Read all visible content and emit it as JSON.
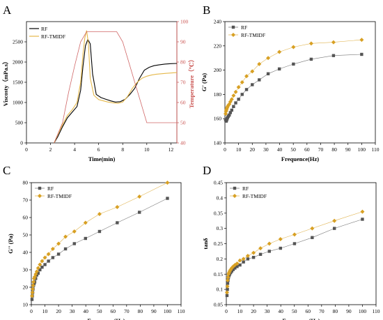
{
  "figure": {
    "panels": [
      "A",
      "B",
      "C",
      "D"
    ]
  },
  "chart_data": [
    {
      "panel": "A",
      "type": "line",
      "xlabel": "Time(min)",
      "ylabel": "Viscosty（mPa.s）",
      "y2label": "Temperature（℃）",
      "xlim": [
        0,
        12.5
      ],
      "ylim": [
        0,
        3000
      ],
      "y2lim": [
        40,
        100
      ],
      "x_ticks": [
        0,
        2,
        4,
        6,
        8,
        10,
        12
      ],
      "y_ticks": [
        0,
        500,
        1000,
        1500,
        2000,
        2500
      ],
      "y2_ticks": [
        40,
        50,
        60,
        70,
        80,
        90,
        100
      ],
      "legend": "top-left",
      "series": [
        {
          "name": "RF",
          "color": "#000000",
          "x": [
            2.3,
            2.6,
            3.0,
            3.4,
            3.8,
            4.2,
            4.5,
            4.7,
            4.9,
            5.1,
            5.3,
            5.5,
            5.8,
            6.2,
            6.6,
            7.0,
            7.4,
            7.8,
            8.2,
            8.6,
            9.0,
            9.4,
            9.8,
            10.2,
            10.6,
            11.0,
            11.5,
            12.0,
            12.5
          ],
          "y": [
            0,
            150,
            400,
            620,
            760,
            900,
            1300,
            1900,
            2400,
            2560,
            2450,
            1700,
            1200,
            1120,
            1080,
            1040,
            1010,
            1020,
            1080,
            1200,
            1350,
            1600,
            1800,
            1870,
            1910,
            1930,
            1950,
            1960,
            1965
          ]
        },
        {
          "name": "RF-TMIDF",
          "color": "#e5b84a",
          "x": [
            2.3,
            2.6,
            3.0,
            3.4,
            3.8,
            4.2,
            4.5,
            4.7,
            4.85,
            5.0,
            5.15,
            5.3,
            5.6,
            6.0,
            6.4,
            6.8,
            7.2,
            7.6,
            8.0,
            8.4,
            8.8,
            9.2,
            9.6,
            10.0,
            10.4,
            10.8,
            11.2,
            11.6,
            12.0,
            12.5
          ],
          "y": [
            0,
            200,
            450,
            680,
            820,
            1000,
            1500,
            2200,
            2600,
            2780,
            2450,
            1600,
            1180,
            1070,
            1040,
            1010,
            990,
            980,
            1010,
            1150,
            1350,
            1500,
            1600,
            1650,
            1680,
            1700,
            1710,
            1720,
            1730,
            1740
          ]
        },
        {
          "name": "Temperature",
          "color": "#d06666",
          "axis": "y2",
          "x": [
            2.3,
            3.0,
            3.5,
            4.0,
            4.5,
            5.0,
            5.5,
            6.0,
            6.5,
            7.0,
            7.5,
            8.0,
            8.5,
            9.0,
            9.5,
            10.0,
            10.5,
            11.0,
            11.5,
            12.0,
            12.5
          ],
          "y": [
            40,
            50,
            65,
            78,
            90,
            95,
            95,
            95,
            95,
            95,
            95,
            90,
            80,
            70,
            60,
            50,
            50,
            50,
            50,
            50,
            50
          ]
        }
      ]
    },
    {
      "panel": "B",
      "type": "line",
      "xlabel": "Frequence(Hz)",
      "ylabel": "G' (Pa)",
      "xlim": [
        0,
        110
      ],
      "ylim": [
        140,
        240
      ],
      "x_ticks": [
        0,
        10,
        20,
        30,
        40,
        50,
        60,
        70,
        80,
        90,
        100,
        110
      ],
      "y_ticks": [
        140,
        160,
        180,
        200,
        220,
        240
      ],
      "legend": "top-left",
      "x": [
        0.5,
        0.8,
        1.0,
        1.3,
        1.6,
        2.0,
        2.5,
        3.2,
        4.0,
        5.0,
        6.3,
        7.9,
        10,
        12.6,
        15.8,
        20,
        25.1,
        31.6,
        39.8,
        50.1,
        63.1,
        79.4,
        100
      ],
      "series": [
        {
          "name": "RF",
          "color": "#555555",
          "marker": "square",
          "values": [
            159,
            158,
            158,
            159,
            160,
            161,
            162,
            163,
            165,
            167,
            170,
            173,
            176,
            180,
            184,
            188,
            192,
            197,
            201,
            205,
            209,
            212,
            213
          ]
        },
        {
          "name": "RF-TMIDF",
          "color": "#d8a023",
          "marker": "diamond",
          "values": [
            164,
            166,
            167,
            168,
            169,
            170,
            171,
            172,
            174,
            176,
            179,
            182,
            186,
            190,
            195,
            199,
            205,
            210,
            215,
            219,
            222,
            223,
            225
          ]
        }
      ]
    },
    {
      "panel": "C",
      "type": "line",
      "xlabel": "Frequence(Hz)",
      "ylabel": "G'' (Pa)",
      "xlim": [
        0,
        110
      ],
      "ylim": [
        10,
        80
      ],
      "x_ticks": [
        0,
        10,
        20,
        30,
        40,
        50,
        60,
        70,
        80,
        90,
        100,
        110
      ],
      "y_ticks": [
        10,
        20,
        30,
        40,
        50,
        60,
        70,
        80
      ],
      "legend": "top-left",
      "x": [
        0.5,
        0.8,
        1.0,
        1.3,
        1.6,
        2.0,
        2.5,
        3.2,
        4.0,
        5.0,
        6.3,
        7.9,
        10,
        12.6,
        15.8,
        20,
        25.1,
        31.6,
        39.8,
        50.1,
        63.1,
        79.4,
        100
      ],
      "series": [
        {
          "name": "RF",
          "color": "#555555",
          "marker": "square",
          "values": [
            13,
            15,
            17,
            19,
            21,
            22,
            23,
            25,
            27,
            28,
            30,
            31.5,
            33,
            35,
            37,
            39,
            42,
            45,
            48,
            52,
            57,
            63,
            71
          ]
        },
        {
          "name": "RF-TMIDF",
          "color": "#d8a023",
          "marker": "diamond",
          "values": [
            15,
            17,
            19,
            21,
            23,
            25,
            26,
            27.5,
            29,
            31,
            33,
            35,
            37,
            39,
            42,
            45,
            49,
            52,
            57,
            62,
            66,
            72,
            80
          ]
        }
      ]
    },
    {
      "panel": "D",
      "type": "line",
      "xlabel": "Frequence(Hz)",
      "ylabel": "tanδ",
      "xlim": [
        0,
        110
      ],
      "ylim": [
        0.05,
        0.45
      ],
      "x_ticks": [
        0,
        10,
        20,
        30,
        40,
        50,
        60,
        70,
        80,
        90,
        100,
        110
      ],
      "y_ticks": [
        0.05,
        0.1,
        0.15,
        0.2,
        0.25,
        0.3,
        0.35,
        0.4,
        0.45
      ],
      "legend": "top-left",
      "x": [
        0.5,
        0.8,
        1.0,
        1.3,
        1.6,
        2.0,
        2.5,
        3.2,
        4.0,
        5.0,
        6.3,
        7.9,
        10,
        12.6,
        15.8,
        20,
        25.1,
        31.6,
        39.8,
        50.1,
        63.1,
        79.4,
        100
      ],
      "series": [
        {
          "name": "RF",
          "color": "#555555",
          "marker": "square",
          "values": [
            0.08,
            0.1,
            0.12,
            0.13,
            0.14,
            0.145,
            0.15,
            0.155,
            0.16,
            0.165,
            0.17,
            0.175,
            0.18,
            0.19,
            0.2,
            0.205,
            0.215,
            0.225,
            0.235,
            0.25,
            0.27,
            0.3,
            0.33
          ]
        },
        {
          "name": "RF-TMIDF",
          "color": "#d8a023",
          "marker": "diamond",
          "values": [
            0.09,
            0.11,
            0.13,
            0.14,
            0.15,
            0.155,
            0.16,
            0.165,
            0.17,
            0.175,
            0.18,
            0.185,
            0.195,
            0.2,
            0.21,
            0.22,
            0.235,
            0.25,
            0.265,
            0.28,
            0.3,
            0.325,
            0.355
          ]
        }
      ]
    }
  ]
}
